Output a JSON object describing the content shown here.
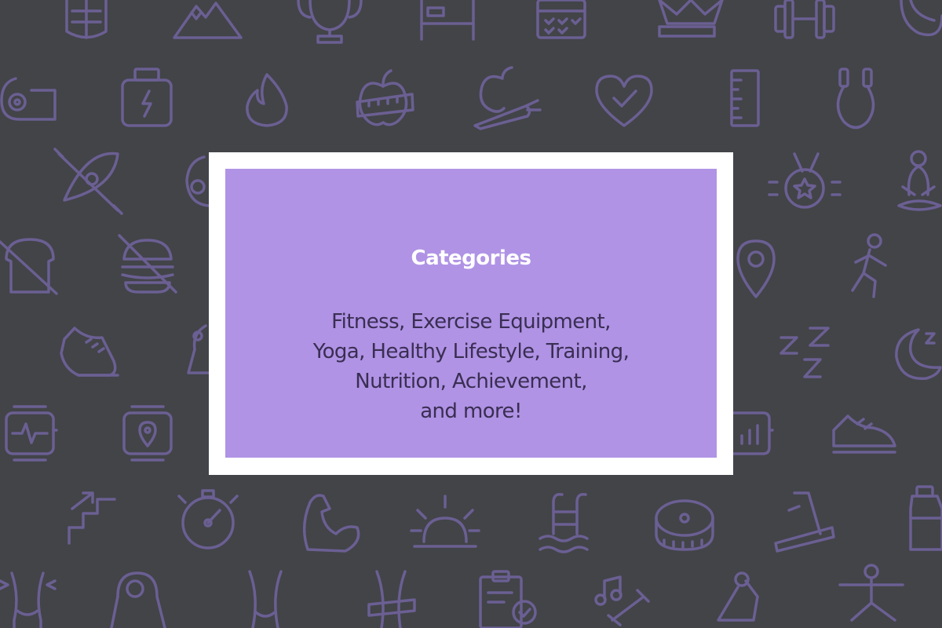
{
  "background": {
    "color": "#424448",
    "icon_color": "#6b5f93",
    "icons": [
      "abs-icon",
      "mountain-icon",
      "trophy-icon",
      "bed-icon",
      "calendar-icon",
      "crown-icon",
      "dumbbell-icon",
      "kettlebell-icon",
      "yoga-mat-icon",
      "protein-jar-icon",
      "flame-icon",
      "apple-tape-icon",
      "apple-carrot-icon",
      "heart-check-icon",
      "ruler-icon",
      "jump-rope-icon",
      "kayak-icon",
      "kettlebell-icon",
      "medal-icon",
      "meditation-icon",
      "no-bread-icon",
      "no-burger-icon",
      "location-pin-icon",
      "runner-icon",
      "sneaker-icon",
      "stretch-icon",
      "sleep-zzz-icon",
      "moon-sleep-icon",
      "smartwatch-pulse-icon",
      "smartwatch-location-icon",
      "smartwatch-chart-icon",
      "running-shoe-icon",
      "stairs-icon",
      "stopwatch-icon",
      "bicep-icon",
      "sunrise-icon",
      "pool-ladder-icon",
      "measuring-tape-icon",
      "treadmill-icon",
      "water-bottle-icon",
      "waist-icon",
      "weight-scale-icon",
      "body-shape-icon",
      "waist-tape-icon",
      "clipboard-check-icon",
      "exercise-music-icon",
      "stretching-icon",
      "warrior-pose-icon"
    ]
  },
  "card": {
    "frame_color": "#ffffff",
    "fill_color": "#b093e5",
    "title": "Categories",
    "lines": [
      "Fitness, Exercise Equipment,",
      "Yoga, Healthy Lifestyle, Training,",
      "Nutrition, Achievement,",
      "and more!"
    ]
  }
}
